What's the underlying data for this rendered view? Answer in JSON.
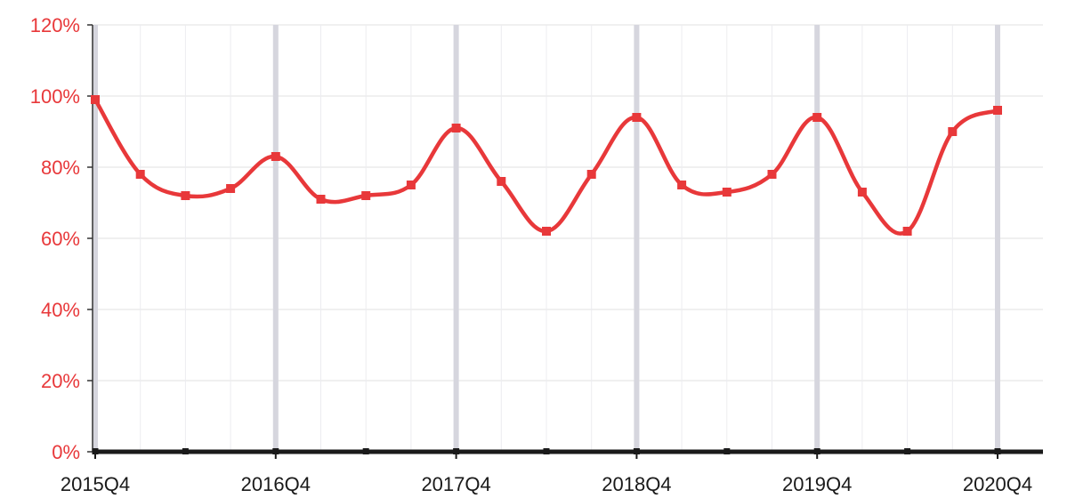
{
  "chart_data": {
    "type": "line",
    "x": [
      "2015Q4",
      "2016Q1",
      "2016Q2",
      "2016Q3",
      "2016Q4",
      "2017Q1",
      "2017Q2",
      "2017Q3",
      "2017Q4",
      "2018Q1",
      "2018Q2",
      "2018Q3",
      "2018Q4",
      "2019Q1",
      "2019Q2",
      "2019Q3",
      "2019Q4",
      "2020Q1",
      "2020Q2",
      "2020Q3",
      "2020Q4"
    ],
    "x_tick_labels": [
      "2015Q4",
      "2016Q4",
      "2017Q4",
      "2018Q4",
      "2019Q4",
      "2020Q4"
    ],
    "series": [
      {
        "values": [
          99,
          78,
          72,
          74,
          83,
          71,
          72,
          75,
          91,
          76,
          62,
          78,
          94,
          75,
          73,
          78,
          94,
          73,
          62,
          90,
          96
        ],
        "color": "#e8383a",
        "marker": "square"
      }
    ],
    "ylim": [
      0,
      120
    ],
    "y_ticks": [
      0,
      20,
      40,
      60,
      80,
      100,
      120
    ],
    "y_tick_labels": [
      "0%",
      "20%",
      "40%",
      "60%",
      "80%",
      "100%",
      "120%"
    ],
    "y_tick_color": "#e8383a",
    "grid": true,
    "legend": "none"
  }
}
